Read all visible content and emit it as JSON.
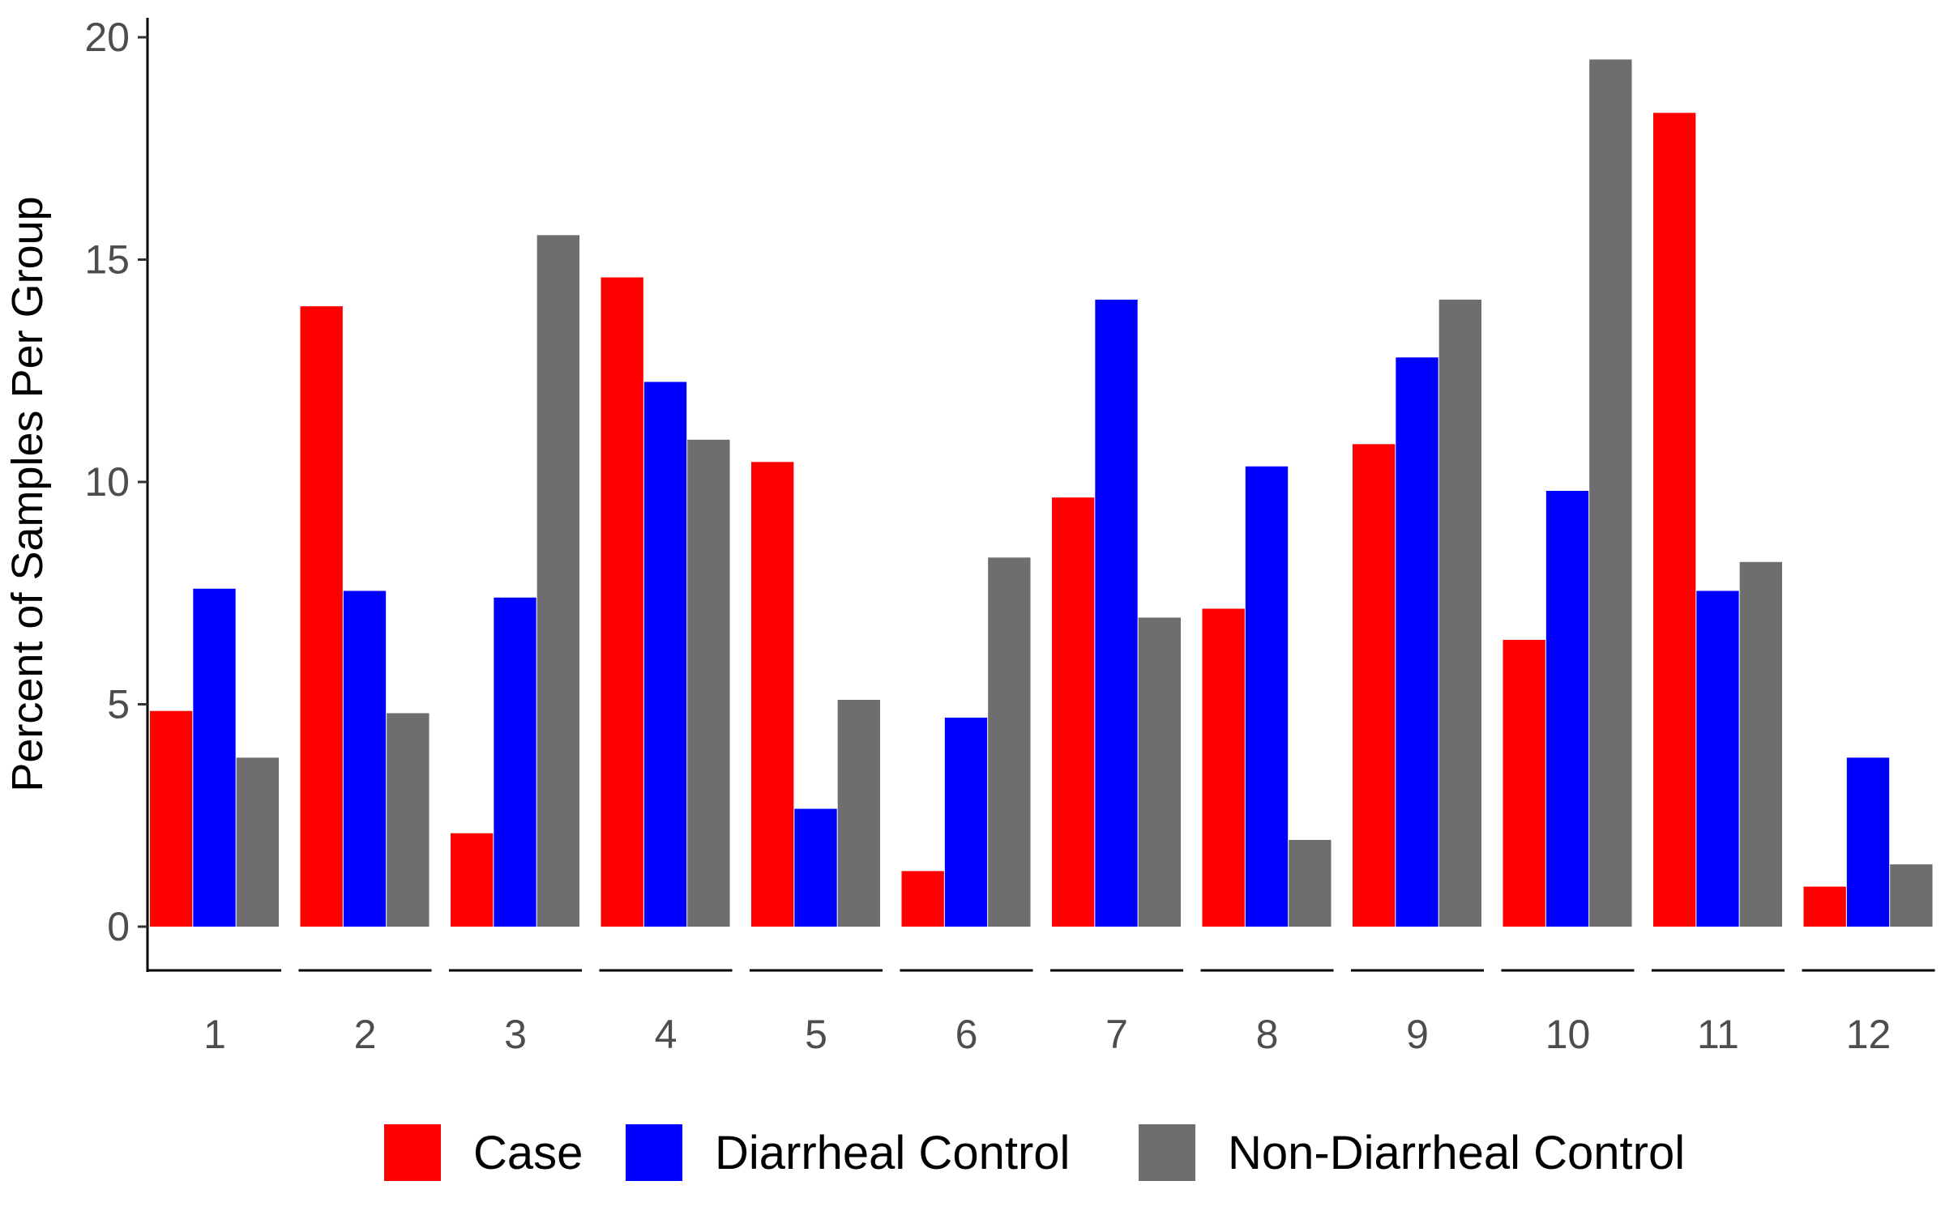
{
  "chart_data": {
    "type": "bar",
    "title": "",
    "xlabel": "",
    "ylabel": "Percent of Samples Per Group",
    "ylim": [
      0,
      20
    ],
    "y_ticks": [
      "0",
      "5",
      "10",
      "15",
      "20"
    ],
    "grid": false,
    "legend_position": "bottom",
    "categories": [
      "1",
      "2",
      "3",
      "4",
      "5",
      "6",
      "7",
      "8",
      "9",
      "10",
      "11",
      "12"
    ],
    "series": [
      {
        "name": "Case",
        "color": "#ff0000",
        "values": [
          4.85,
          13.95,
          2.1,
          14.6,
          10.45,
          1.25,
          9.65,
          7.15,
          10.85,
          6.45,
          18.3,
          0.9
        ]
      },
      {
        "name": "Diarrheal Control",
        "color": "#0000ff",
        "values": [
          7.6,
          7.55,
          7.4,
          12.25,
          2.65,
          4.7,
          14.1,
          10.35,
          12.8,
          9.8,
          7.55,
          3.8
        ]
      },
      {
        "name": "Non-Diarrheal Control",
        "color": "#6e6e6e",
        "values": [
          3.8,
          4.8,
          15.55,
          10.95,
          5.1,
          8.3,
          6.95,
          1.95,
          14.1,
          19.5,
          8.2,
          1.4
        ]
      }
    ]
  }
}
